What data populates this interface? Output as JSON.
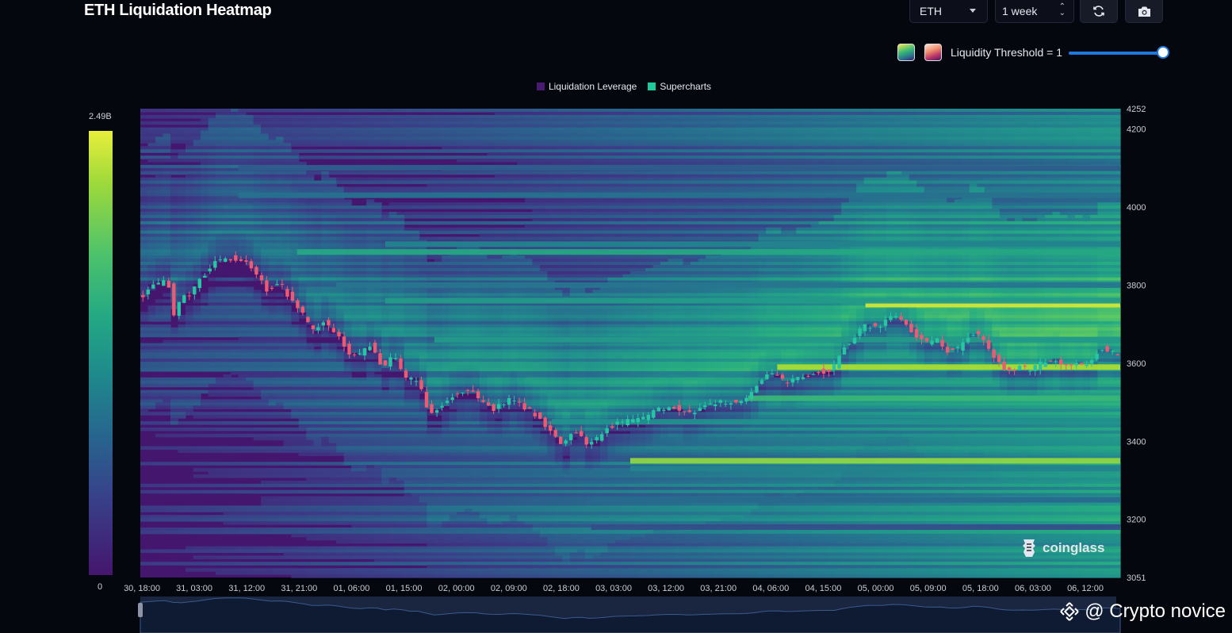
{
  "header": {
    "title": "ETH Liquidation Heatmap"
  },
  "controls": {
    "symbol": "ETH",
    "range": "1 week",
    "threshold_label": "Liquidity Threshold = 1",
    "threshold_value": 1.0
  },
  "icons": {
    "refresh": "refresh-icon",
    "camera": "camera-icon",
    "brand": "coinglass-logo",
    "binance": "binance-diamond-icon"
  },
  "colors": {
    "background": "#05070e",
    "heat_low": "#45166e",
    "heat_mid": "#21908d",
    "heat_high": "#e8ee3a",
    "candle_up": "#26c6a2",
    "candle_down": "#ef5a73",
    "slider": "#1f7ae0"
  },
  "colorbar": {
    "max_label": "2.49B",
    "min_label": "0"
  },
  "legend": [
    {
      "label": "Liquidation Leverage",
      "color": "#4a1a73"
    },
    {
      "label": "Supercharts",
      "color": "#1ec99b"
    }
  ],
  "branding": {
    "text": "coinglass",
    "watermark": "@ Crypto novice"
  },
  "chart_data": {
    "type": "heatmap",
    "title": "ETH Liquidation Heatmap",
    "ylim": [
      3051,
      4252
    ],
    "y_ticks": [
      4252,
      4200,
      4000,
      3800,
      3600,
      3400,
      3200,
      3051
    ],
    "x_tick_labels": [
      "30, 18:00",
      "31, 03:00",
      "31, 12:00",
      "31, 21:00",
      "01, 06:00",
      "01, 15:00",
      "02, 00:00",
      "02, 09:00",
      "02, 18:00",
      "03, 03:00",
      "03, 12:00",
      "03, 21:00",
      "04, 06:00",
      "04, 15:00",
      "05, 00:00",
      "05, 09:00",
      "05, 18:00",
      "06, 03:00",
      "06, 12:00"
    ],
    "colorbar_range": [
      "0",
      "2.49B"
    ],
    "price_path": [
      {
        "t": 0,
        "p": 3770
      },
      {
        "t": 0.5,
        "p": 3775
      },
      {
        "t": 1.5,
        "p": 3800
      },
      {
        "t": 2.6,
        "p": 3810
      },
      {
        "t": 3.0,
        "p": 3720
      },
      {
        "t": 3.7,
        "p": 3770
      },
      {
        "t": 4.5,
        "p": 3780
      },
      {
        "t": 5.5,
        "p": 3820
      },
      {
        "t": 6.5,
        "p": 3860
      },
      {
        "t": 8.0,
        "p": 3870
      },
      {
        "t": 9.2,
        "p": 3860
      },
      {
        "t": 10.3,
        "p": 3820
      },
      {
        "t": 11.0,
        "p": 3790
      },
      {
        "t": 12.3,
        "p": 3800
      },
      {
        "t": 13.2,
        "p": 3760
      },
      {
        "t": 14.0,
        "p": 3730
      },
      {
        "t": 15.0,
        "p": 3680
      },
      {
        "t": 15.8,
        "p": 3710
      },
      {
        "t": 17.0,
        "p": 3680
      },
      {
        "t": 18.0,
        "p": 3630
      },
      {
        "t": 19.0,
        "p": 3620
      },
      {
        "t": 20.0,
        "p": 3650
      },
      {
        "t": 21.0,
        "p": 3590
      },
      {
        "t": 22.0,
        "p": 3620
      },
      {
        "t": 23.0,
        "p": 3560
      },
      {
        "t": 24.0,
        "p": 3560
      },
      {
        "t": 25.0,
        "p": 3470
      },
      {
        "t": 26.0,
        "p": 3490
      },
      {
        "t": 27.0,
        "p": 3520
      },
      {
        "t": 28.5,
        "p": 3530
      },
      {
        "t": 29.5,
        "p": 3500
      },
      {
        "t": 30.5,
        "p": 3480
      },
      {
        "t": 32.0,
        "p": 3510
      },
      {
        "t": 33.0,
        "p": 3490
      },
      {
        "t": 34.5,
        "p": 3460
      },
      {
        "t": 35.5,
        "p": 3420
      },
      {
        "t": 36.5,
        "p": 3390
      },
      {
        "t": 37.5,
        "p": 3430
      },
      {
        "t": 38.5,
        "p": 3395
      },
      {
        "t": 39.5,
        "p": 3410
      },
      {
        "t": 40.5,
        "p": 3440
      },
      {
        "t": 42.0,
        "p": 3450
      },
      {
        "t": 43.5,
        "p": 3460
      },
      {
        "t": 44.5,
        "p": 3480
      },
      {
        "t": 46.0,
        "p": 3490
      },
      {
        "t": 47.0,
        "p": 3470
      },
      {
        "t": 48.5,
        "p": 3490
      },
      {
        "t": 50.0,
        "p": 3500
      },
      {
        "t": 51.5,
        "p": 3500
      },
      {
        "t": 52.5,
        "p": 3520
      },
      {
        "t": 53.5,
        "p": 3560
      },
      {
        "t": 54.5,
        "p": 3570
      },
      {
        "t": 55.5,
        "p": 3550
      },
      {
        "t": 57.0,
        "p": 3570
      },
      {
        "t": 58.5,
        "p": 3580
      },
      {
        "t": 59.5,
        "p": 3580
      },
      {
        "t": 60.5,
        "p": 3640
      },
      {
        "t": 61.5,
        "p": 3670
      },
      {
        "t": 62.5,
        "p": 3700
      },
      {
        "t": 63.5,
        "p": 3690
      },
      {
        "t": 64.5,
        "p": 3720
      },
      {
        "t": 65.5,
        "p": 3710
      },
      {
        "t": 66.5,
        "p": 3680
      },
      {
        "t": 67.5,
        "p": 3650
      },
      {
        "t": 68.5,
        "p": 3660
      },
      {
        "t": 69.5,
        "p": 3630
      },
      {
        "t": 70.5,
        "p": 3640
      },
      {
        "t": 71.5,
        "p": 3680
      },
      {
        "t": 72.5,
        "p": 3660
      },
      {
        "t": 73.5,
        "p": 3610
      },
      {
        "t": 74.5,
        "p": 3580
      },
      {
        "t": 75.5,
        "p": 3590
      },
      {
        "t": 76.5,
        "p": 3580
      },
      {
        "t": 77.5,
        "p": 3600
      },
      {
        "t": 78.5,
        "p": 3610
      },
      {
        "t": 79.5,
        "p": 3590
      },
      {
        "t": 80.5,
        "p": 3600
      },
      {
        "t": 81.5,
        "p": 3590
      },
      {
        "t": 82.5,
        "p": 3640
      },
      {
        "t": 83.5,
        "p": 3630
      },
      {
        "t": 84.0,
        "p": 3625
      }
    ],
    "liquidation_bands": [
      {
        "price": 3885,
        "intensity": 0.62,
        "from": 0.16
      },
      {
        "price": 3905,
        "intensity": 0.45,
        "from": 0.25
      },
      {
        "price": 3750,
        "intensity": 0.97,
        "from": 0.74
      },
      {
        "price": 3760,
        "intensity": 0.55,
        "from": 0.25
      },
      {
        "price": 3590,
        "intensity": 0.92,
        "from": 0.65
      },
      {
        "price": 3510,
        "intensity": 0.7,
        "from": 0.62
      },
      {
        "price": 3350,
        "intensity": 0.88,
        "from": 0.5
      },
      {
        "price": 3330,
        "intensity": 0.45,
        "from": 0.5
      },
      {
        "price": 3450,
        "intensity": 0.5,
        "from": 0.42
      },
      {
        "price": 3660,
        "intensity": 0.55,
        "from": 0.3
      },
      {
        "price": 3800,
        "intensity": 0.4,
        "from": 0.2
      },
      {
        "price": 4030,
        "intensity": 0.38,
        "from": 0.1
      },
      {
        "price": 4100,
        "intensity": 0.3,
        "from": 0.1
      },
      {
        "price": 3250,
        "intensity": 0.35,
        "from": 0.46
      },
      {
        "price": 3180,
        "intensity": 0.25,
        "from": 0.46
      }
    ]
  }
}
